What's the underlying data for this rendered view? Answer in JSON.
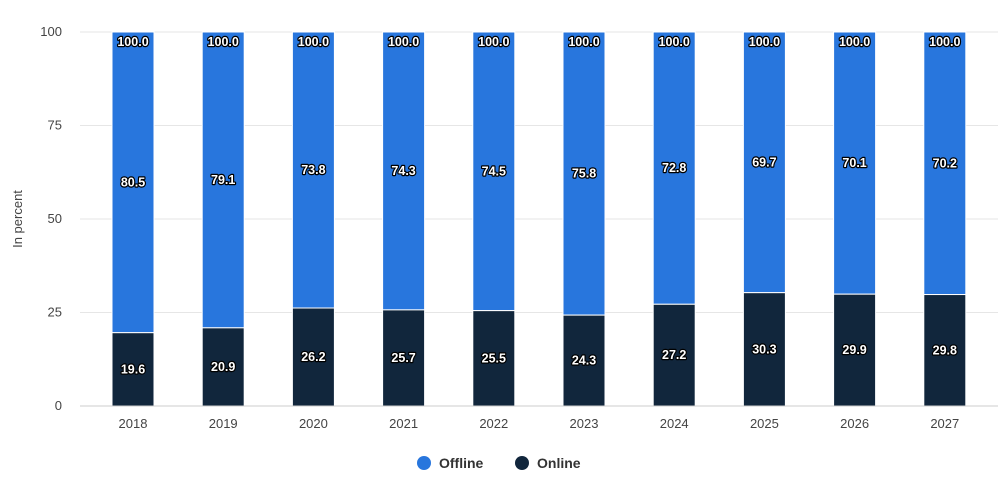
{
  "chart_data": {
    "type": "bar",
    "stacked": true,
    "categories": [
      "2018",
      "2019",
      "2020",
      "2021",
      "2022",
      "2023",
      "2024",
      "2025",
      "2026",
      "2027"
    ],
    "series": [
      {
        "name": "Online",
        "color": "#11263c",
        "values": [
          19.6,
          20.9,
          26.2,
          25.7,
          25.5,
          24.3,
          27.2,
          30.3,
          29.9,
          29.8
        ]
      },
      {
        "name": "Offline",
        "color": "#2876dd",
        "values": [
          80.5,
          79.1,
          73.8,
          74.3,
          74.5,
          75.8,
          72.8,
          69.7,
          70.1,
          70.2
        ]
      }
    ],
    "totals": [
      "100.0",
      "100.0",
      "100.0",
      "100.0",
      "100.0",
      "100.0",
      "100.0",
      "100.0",
      "100.0",
      "100.0"
    ],
    "ylabel": "In percent",
    "yticks": [
      0,
      25,
      50,
      75,
      100
    ],
    "ylim": [
      0,
      100
    ],
    "grid": true,
    "legend": {
      "position": "bottom",
      "items": [
        "Offline",
        "Online"
      ]
    }
  }
}
